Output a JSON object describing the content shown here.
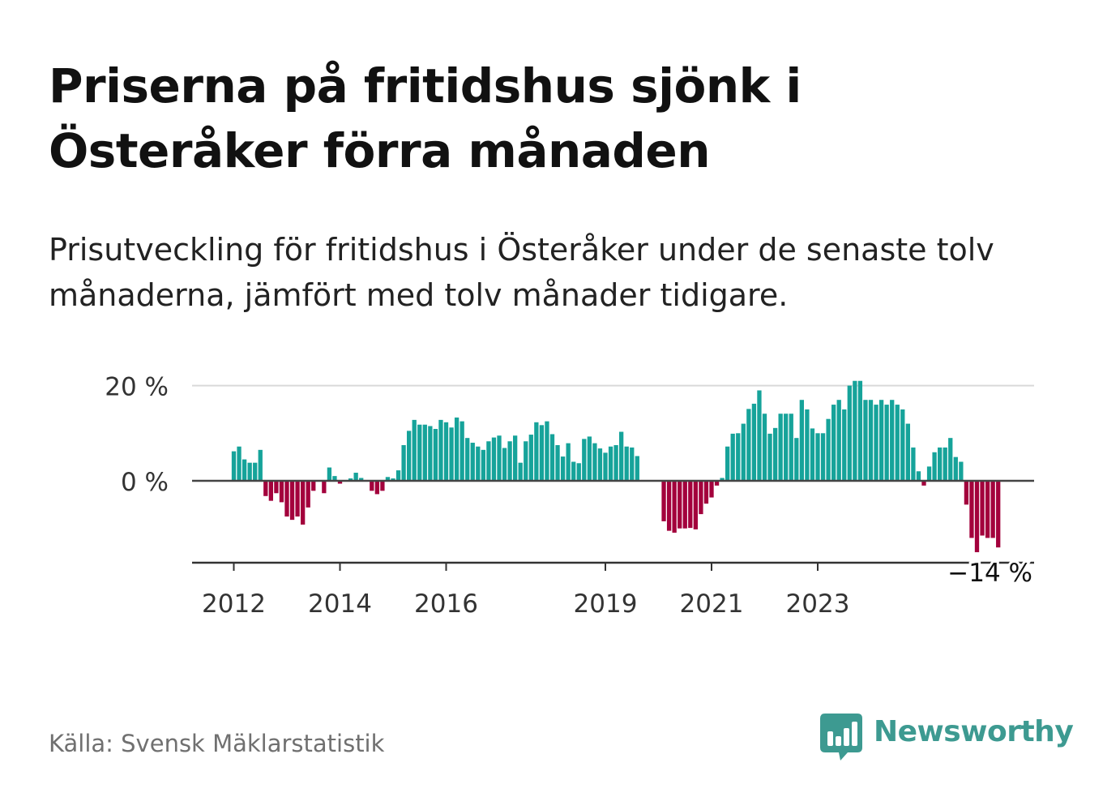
{
  "title": "Priserna på fritidshus sjönk i Österåker förra månaden",
  "subtitle": "Prisutveckling för fritidshus i Österåker under de senaste tolv månaderna, jämfört med tolv månader tidigare.",
  "source": "Källa: Svensk Mäklarstatistik",
  "brand": "Newsworthy",
  "colors": {
    "positive": "#16a39a",
    "negative": "#a3003c",
    "gridline": "#d9d9d9",
    "baseline": "#444444",
    "brand": "#3d9a91"
  },
  "chart_data": {
    "type": "bar",
    "title": "",
    "xlabel": "",
    "ylabel": "",
    "unit": "%",
    "ylim": [
      -17,
      20
    ],
    "y_ticks": [
      {
        "value": 20,
        "label": "20 %"
      },
      {
        "value": 0,
        "label": "0 %"
      }
    ],
    "x_ticks": [
      {
        "index": 0,
        "label": "2012"
      },
      {
        "index": 20,
        "label": "2014"
      },
      {
        "index": 40,
        "label": "2016"
      },
      {
        "index": 70,
        "label": "2019"
      },
      {
        "index": 90,
        "label": "2021"
      },
      {
        "index": 110,
        "label": "2023"
      }
    ],
    "series": [
      {
        "name": "Prisutveckling",
        "values": [
          6.2,
          7.2,
          4.5,
          3.8,
          3.8,
          6.5,
          -3.2,
          -4.2,
          -2.6,
          -4.5,
          -7.5,
          -8.2,
          -7.5,
          -9.2,
          -5.6,
          -2.1,
          null,
          -2.6,
          2.8,
          1.0,
          -0.6,
          null,
          0.5,
          1.7,
          0.6,
          null,
          -2.1,
          -2.8,
          -2.1,
          0.8,
          0.5,
          2.2,
          7.5,
          10.5,
          12.8,
          11.8,
          11.8,
          11.5,
          10.9,
          12.8,
          12.3,
          11.2,
          13.3,
          12.5,
          9.0,
          8.0,
          7.2,
          6.5,
          8.3,
          9.1,
          9.5,
          6.9,
          8.3,
          9.5,
          3.8,
          8.3,
          9.7,
          12.3,
          11.7,
          12.5,
          9.8,
          7.5,
          5.1,
          7.9,
          4.0,
          3.7,
          8.8,
          9.3,
          7.9,
          6.8,
          5.9,
          7.2,
          7.5,
          10.3,
          7.2,
          7.0,
          5.2,
          null,
          null,
          null,
          null,
          -8.5,
          -10.5,
          -10.9,
          -10.0,
          -10.0,
          -9.9,
          -10.2,
          -7.0,
          -4.8,
          -3.5,
          -1.0,
          0.6,
          7.2,
          9.9,
          10.0,
          12.0,
          15.1,
          16.2,
          19.0,
          14.1,
          9.9,
          11.1,
          14.1,
          14.1,
          14.1,
          9.0,
          17.0,
          15.0,
          11.0,
          10.0,
          10.0,
          13.0,
          16.0,
          17.0,
          15.0,
          20.0,
          21.0,
          21.0,
          17.0,
          17.0,
          16.0,
          17.0,
          16.0,
          17.0,
          16.0,
          15.0,
          12.0,
          7.0,
          2.0,
          -1.0,
          3.0,
          6.0,
          7.0,
          7.0,
          9.0,
          5.0,
          4.0,
          -5.0,
          -12.0,
          -15.0,
          -11.5,
          -12.0,
          -12.0,
          -14.0
        ]
      }
    ],
    "annotations": [
      {
        "label": "−14 %",
        "target": "last"
      }
    ]
  }
}
